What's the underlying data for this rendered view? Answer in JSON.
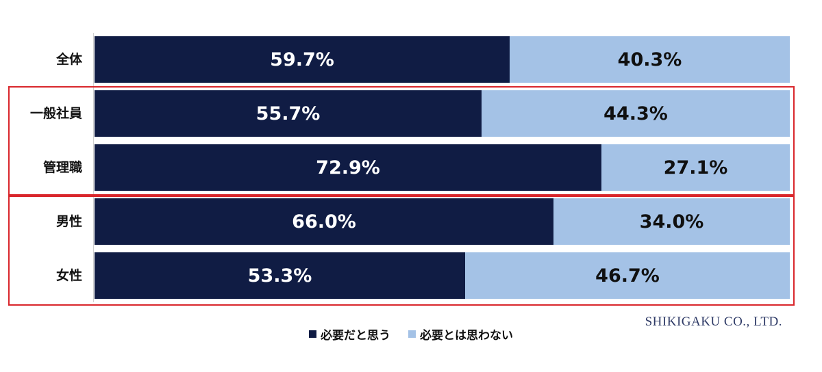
{
  "chart_data": {
    "type": "bar",
    "orientation": "horizontal",
    "stacked": true,
    "percent_stacked": true,
    "categories": [
      "全体",
      "一般社員",
      "管理職",
      "男性",
      "女性"
    ],
    "series": [
      {
        "name": "必要だと思う",
        "values": [
          59.7,
          55.7,
          72.9,
          66.0,
          53.3
        ],
        "labels": [
          "59.7%",
          "55.7%",
          "72.9%",
          "66.0%",
          "53.3%"
        ],
        "color": "#101c44"
      },
      {
        "name": "必要とは思わない",
        "values": [
          40.3,
          44.3,
          27.1,
          34.0,
          46.7
        ],
        "labels": [
          "40.3%",
          "44.3%",
          "27.1%",
          "34.0%",
          "46.7%"
        ],
        "color": "#a4c2e6"
      }
    ],
    "xlim": [
      0,
      100
    ],
    "grid": false,
    "legend_position": "bottom-center",
    "highlight_groups": [
      {
        "categories": [
          "一般社員",
          "管理職"
        ],
        "color": "#d9262b"
      },
      {
        "categories": [
          "男性",
          "女性"
        ],
        "color": "#d9262b"
      }
    ]
  },
  "watermark": "SHIKIGAKU CO., LTD."
}
